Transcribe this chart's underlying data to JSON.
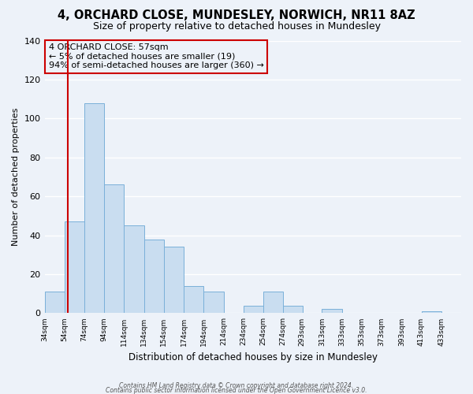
{
  "title1": "4, ORCHARD CLOSE, MUNDESLEY, NORWICH, NR11 8AZ",
  "title2": "Size of property relative to detached houses in Mundesley",
  "xlabel": "Distribution of detached houses by size in Mundesley",
  "ylabel": "Number of detached properties",
  "bar_edges": [
    34,
    54,
    74,
    94,
    114,
    134,
    154,
    174,
    194,
    214,
    234,
    254,
    274,
    293,
    313,
    333,
    353,
    373,
    393,
    413,
    433
  ],
  "bar_heights": [
    11,
    47,
    108,
    66,
    45,
    38,
    34,
    14,
    11,
    0,
    4,
    11,
    4,
    0,
    2,
    0,
    0,
    0,
    0,
    1
  ],
  "bar_color": "#c9ddf0",
  "bar_edge_color": "#7ab0d9",
  "vline_x": 57,
  "vline_color": "#cc0000",
  "annotation_line1": "4 ORCHARD CLOSE: 57sqm",
  "annotation_line2": "← 5% of detached houses are smaller (19)",
  "annotation_line3": "94% of semi-detached houses are larger (360) →",
  "annotation_box_edge_color": "#cc0000",
  "ylim": [
    0,
    140
  ],
  "yticks": [
    0,
    20,
    40,
    60,
    80,
    100,
    120,
    140
  ],
  "tick_labels": [
    "34sqm",
    "54sqm",
    "74sqm",
    "94sqm",
    "114sqm",
    "134sqm",
    "154sqm",
    "174sqm",
    "194sqm",
    "214sqm",
    "234sqm",
    "254sqm",
    "274sqm",
    "293sqm",
    "313sqm",
    "333sqm",
    "353sqm",
    "373sqm",
    "393sqm",
    "413sqm",
    "433sqm"
  ],
  "footer1": "Contains HM Land Registry data © Crown copyright and database right 2024.",
  "footer2": "Contains public sector information licensed under the Open Government Licence v3.0.",
  "bg_color": "#edf2f9",
  "grid_color": "#ffffff",
  "title1_fontsize": 10.5,
  "title2_fontsize": 9,
  "xlabel_fontsize": 8.5,
  "ylabel_fontsize": 8,
  "annotation_fontsize": 8,
  "tick_fontsize": 6.5,
  "ytick_fontsize": 8
}
